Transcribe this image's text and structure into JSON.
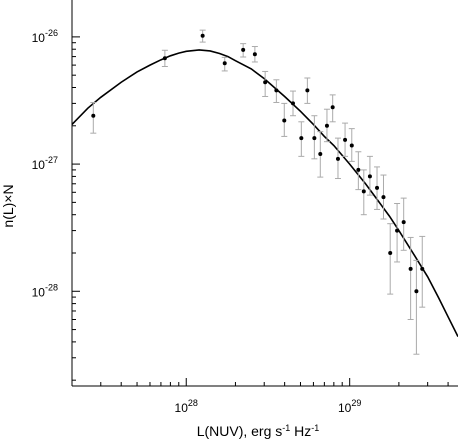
{
  "chart_data": {
    "type": "scatter",
    "title": "",
    "xlabel": {
      "base": "L(NUV), erg s",
      "exp1": "-1",
      "mid": " Hz",
      "exp2": "-1"
    },
    "ylabel": "n(L)×N",
    "x_scale": "log",
    "y_scale": "log",
    "xlim": [
      2e+27,
      4.6e+29
    ],
    "ylim": [
      1.8e-29,
      1.95e-26
    ],
    "x_ticks": [
      {
        "value": 1e+28,
        "base": "10",
        "exp": "28"
      },
      {
        "value": 1e+29,
        "base": "10",
        "exp": "29"
      }
    ],
    "y_ticks": [
      {
        "value": 1e-28,
        "base": "10",
        "exp": "-28"
      },
      {
        "value": 1e-27,
        "base": "10",
        "exp": "-27"
      },
      {
        "value": 1e-26,
        "base": "10",
        "exp": "-26"
      }
    ],
    "grid": false,
    "colors": {
      "points": "#000000",
      "error_bars": "#aaaaaa",
      "fit_curve": "#000000"
    },
    "series": [
      {
        "kind": "points_with_error_bars",
        "points": [
          {
            "x": 2.7e+27,
            "y": 2.4e-27,
            "lo": 1.75e-27,
            "hi": 3.05e-27
          },
          {
            "x": 7.4e+27,
            "y": 6.8e-27,
            "lo": 5.85e-27,
            "hi": 7.85e-27
          },
          {
            "x": 1.26e+28,
            "y": 1.02e-26,
            "lo": 9.1e-27,
            "hi": 1.13e-26
          },
          {
            "x": 1.72e+28,
            "y": 6.2e-27,
            "lo": 5.4e-27,
            "hi": 6.9e-27
          },
          {
            "x": 2.23e+28,
            "y": 7.9e-27,
            "lo": 6.95e-27,
            "hi": 8.85e-27
          },
          {
            "x": 2.63e+28,
            "y": 7.3e-27,
            "lo": 6.35e-27,
            "hi": 8.4e-27
          },
          {
            "x": 3.04e+28,
            "y": 4.4e-27,
            "lo": 3.4e-27,
            "hi": 5.35e-27
          },
          {
            "x": 3.56e+28,
            "y": 3.8e-27,
            "lo": 3.05e-27,
            "hi": 4.6e-27
          },
          {
            "x": 3.98e+28,
            "y": 2.2e-27,
            "lo": 1.65e-27,
            "hi": 3e-27
          },
          {
            "x": 4.5e+28,
            "y": 3e-27,
            "lo": 2.4e-27,
            "hi": 3.75e-27
          },
          {
            "x": 5.06e+28,
            "y": 1.6e-27,
            "lo": 1.15e-27,
            "hi": 2.15e-27
          },
          {
            "x": 5.51e+28,
            "y": 3.8e-27,
            "lo": 3e-27,
            "hi": 4.75e-27
          },
          {
            "x": 6.08e+28,
            "y": 1.6e-27,
            "lo": 1.1e-27,
            "hi": 2.4e-27
          },
          {
            "x": 6.61e+28,
            "y": 1.2e-27,
            "lo": 7.9e-28,
            "hi": 1.8e-27
          },
          {
            "x": 7.26e+28,
            "y": 2e-27,
            "lo": 1.5e-27,
            "hi": 2.7e-27
          },
          {
            "x": 7.87e+28,
            "y": 2.8e-27,
            "lo": 2.15e-27,
            "hi": 3.5e-27
          },
          {
            "x": 8.48e+28,
            "y": 1.1e-27,
            "lo": 7.7e-28,
            "hi": 1.6e-27
          },
          {
            "x": 9.37e+28,
            "y": 1.55e-27,
            "lo": 1.15e-27,
            "hi": 2.1e-27
          },
          {
            "x": 1.03e+29,
            "y": 1.4e-27,
            "lo": 1.05e-27,
            "hi": 1.9e-27
          },
          {
            "x": 1.13e+29,
            "y": 9e-28,
            "lo": 6.3e-28,
            "hi": 1.25e-27
          },
          {
            "x": 1.22e+29,
            "y": 6.1e-28,
            "lo": 4e-28,
            "hi": 9e-28
          },
          {
            "x": 1.33e+29,
            "y": 8e-28,
            "lo": 5.7e-28,
            "hi": 1.15e-27
          },
          {
            "x": 1.47e+29,
            "y": 6.5e-28,
            "lo": 4.4e-28,
            "hi": 9.5e-28
          },
          {
            "x": 1.61e+29,
            "y": 5.5e-28,
            "lo": 3.7e-28,
            "hi": 8.2e-28
          },
          {
            "x": 1.77e+29,
            "y": 2e-28,
            "lo": 9.5e-29,
            "hi": 3.4e-28
          },
          {
            "x": 1.95e+29,
            "y": 3e-28,
            "lo": 1.7e-28,
            "hi": 4.9e-28
          },
          {
            "x": 2.14e+29,
            "y": 3.5e-28,
            "lo": 2.1e-28,
            "hi": 5.4e-28
          },
          {
            "x": 2.36e+29,
            "y": 1.5e-28,
            "lo": 6e-29,
            "hi": 2.65e-28
          },
          {
            "x": 2.56e+29,
            "y": 1e-28,
            "lo": 3.2e-29,
            "hi": 1.75e-28
          },
          {
            "x": 2.78e+29,
            "y": 1.5e-28,
            "lo": 7.5e-29,
            "hi": 2.7e-28
          }
        ]
      },
      {
        "kind": "fit_curve",
        "points": [
          {
            "x": 2e+27,
            "y": 2.05e-27
          },
          {
            "x": 2.5e+27,
            "y": 2.75e-27
          },
          {
            "x": 3e+27,
            "y": 3.35e-27
          },
          {
            "x": 4e+27,
            "y": 4.4e-27
          },
          {
            "x": 5e+27,
            "y": 5.3e-27
          },
          {
            "x": 6e+27,
            "y": 6e-27
          },
          {
            "x": 7e+27,
            "y": 6.6e-27
          },
          {
            "x": 8e+27,
            "y": 7.1e-27
          },
          {
            "x": 9e+27,
            "y": 7.45e-27
          },
          {
            "x": 1e+28,
            "y": 7.7e-27
          },
          {
            "x": 1.2e+28,
            "y": 7.9e-27
          },
          {
            "x": 1.4e+28,
            "y": 7.75e-27
          },
          {
            "x": 1.6e+28,
            "y": 7.4e-27
          },
          {
            "x": 1.8e+28,
            "y": 7e-27
          },
          {
            "x": 2e+28,
            "y": 6.5e-27
          },
          {
            "x": 2.5e+28,
            "y": 5.6e-27
          },
          {
            "x": 3e+28,
            "y": 4.7e-27
          },
          {
            "x": 4e+28,
            "y": 3.4e-27
          },
          {
            "x": 5e+28,
            "y": 2.6e-27
          },
          {
            "x": 6e+28,
            "y": 2.05e-27
          },
          {
            "x": 7e+28,
            "y": 1.65e-27
          },
          {
            "x": 8e+28,
            "y": 1.4e-27
          },
          {
            "x": 1e+29,
            "y": 1e-27
          },
          {
            "x": 1.25e+29,
            "y": 7e-28
          },
          {
            "x": 1.5e+29,
            "y": 5.1e-28
          },
          {
            "x": 1.75e+29,
            "y": 3.9e-28
          },
          {
            "x": 2e+29,
            "y": 3e-28
          },
          {
            "x": 2.5e+29,
            "y": 1.9e-28
          },
          {
            "x": 3e+29,
            "y": 1.3e-28
          },
          {
            "x": 3.5e+29,
            "y": 8.9e-29
          },
          {
            "x": 4e+29,
            "y": 6.3e-29
          },
          {
            "x": 4.6e+29,
            "y": 4.4e-29
          }
        ]
      }
    ]
  }
}
